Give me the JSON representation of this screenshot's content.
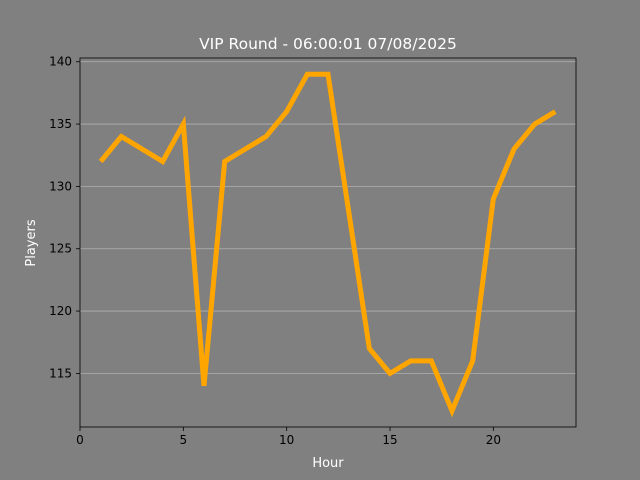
{
  "chart_data": {
    "type": "line",
    "title": "VIP Round - 06:00:01 07/08/2025",
    "xlabel": "Hour",
    "ylabel": "Players",
    "xlim": [
      0,
      24
    ],
    "ylim": [
      110.7,
      140.3
    ],
    "xticks": [
      0,
      5,
      10,
      15,
      20
    ],
    "yticks": [
      115,
      120,
      125,
      130,
      135,
      140
    ],
    "grid": "horizontal",
    "line_color": "#ffa500",
    "background_color": "#808080",
    "series": [
      {
        "x": [
          1,
          2,
          3,
          4,
          5,
          6,
          7,
          8,
          9,
          10,
          11,
          12,
          13,
          14,
          15,
          16,
          17,
          18,
          19,
          20,
          21,
          22,
          23
        ],
        "values": [
          132,
          134,
          133,
          132,
          135,
          114,
          132,
          133,
          134,
          136,
          139,
          139,
          128,
          117,
          115,
          116,
          116,
          112,
          116,
          129,
          133,
          135,
          136
        ]
      }
    ]
  }
}
